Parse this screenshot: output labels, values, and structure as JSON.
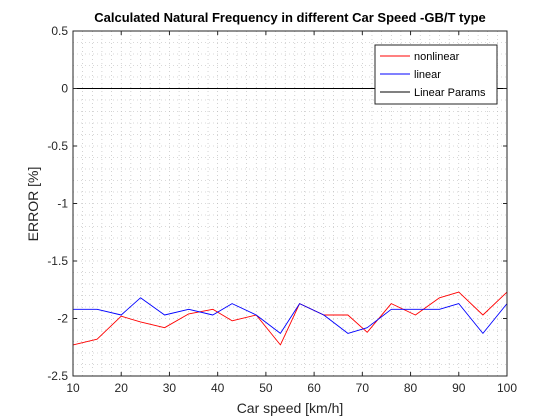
{
  "chart_data": {
    "type": "line",
    "title": "Calculated Natural Frequency in different Car Speed -GB/T type",
    "xlabel": "Car speed [km/h]",
    "ylabel": "ERROR [%]",
    "xlim": [
      10,
      100
    ],
    "ylim": [
      -2.5,
      0.5
    ],
    "x_ticks": [
      10,
      20,
      30,
      40,
      50,
      60,
      70,
      80,
      90,
      100
    ],
    "y_ticks": [
      0.5,
      0,
      -0.5,
      -1,
      -1.5,
      -2,
      -2.5
    ],
    "x_tick_labels": [
      "10",
      "20",
      "30",
      "40",
      "50",
      "60",
      "70",
      "80",
      "90",
      "100"
    ],
    "y_tick_labels": [
      "0.5",
      "0",
      "-0.5",
      "-1",
      "-1.5",
      "-2",
      "-2.5"
    ],
    "grid": "minor-dotted",
    "legend_position": "top-right",
    "series": [
      {
        "name": "nonlinear",
        "color": "#ff0000",
        "x": [
          10,
          15,
          20,
          24,
          29,
          34,
          39,
          43,
          48,
          53,
          57,
          62,
          67,
          71,
          76,
          81,
          86,
          90,
          95,
          100
        ],
        "y": [
          -2.23,
          -2.18,
          -1.98,
          -2.03,
          -2.08,
          -1.96,
          -1.92,
          -2.02,
          -1.97,
          -2.23,
          -1.87,
          -1.97,
          -1.97,
          -2.12,
          -1.87,
          -1.97,
          -1.82,
          -1.77,
          -1.97,
          -1.77
        ]
      },
      {
        "name": "linear",
        "color": "#0000ff",
        "x": [
          10,
          15,
          20,
          24,
          29,
          34,
          39,
          43,
          48,
          53,
          57,
          62,
          67,
          71,
          76,
          81,
          86,
          90,
          95,
          100
        ],
        "y": [
          -1.92,
          -1.92,
          -1.97,
          -1.82,
          -1.97,
          -1.92,
          -1.97,
          -1.87,
          -1.97,
          -2.13,
          -1.87,
          -1.97,
          -2.13,
          -2.08,
          -1.92,
          -1.92,
          -1.92,
          -1.87,
          -2.13,
          -1.87
        ]
      },
      {
        "name": "Linear Params",
        "color": "#000000",
        "x": [
          10,
          100
        ],
        "y": [
          0,
          0
        ]
      }
    ]
  }
}
